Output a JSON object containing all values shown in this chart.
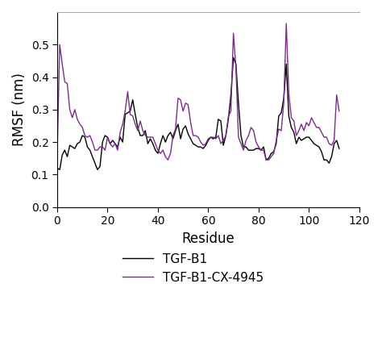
{
  "title": "",
  "xlabel": "Residue",
  "ylabel": "RMSF (nm)",
  "xlim": [
    0,
    120
  ],
  "ylim": [
    0,
    0.6
  ],
  "xticks": [
    0,
    20,
    40,
    60,
    80,
    100,
    120
  ],
  "yticks": [
    0,
    0.1,
    0.2,
    0.3,
    0.4,
    0.5
  ],
  "color_black": "#000000",
  "color_purple": "#7B2D8B",
  "legend_labels": [
    "TGF-B1",
    "TGF-B1-CX-4945"
  ],
  "tgfb1_y": [
    0.12,
    0.115,
    0.16,
    0.175,
    0.155,
    0.19,
    0.185,
    0.18,
    0.195,
    0.2,
    0.22,
    0.215,
    0.185,
    0.175,
    0.155,
    0.135,
    0.115,
    0.125,
    0.2,
    0.22,
    0.215,
    0.195,
    0.205,
    0.195,
    0.185,
    0.215,
    0.2,
    0.285,
    0.29,
    0.295,
    0.33,
    0.285,
    0.245,
    0.22,
    0.22,
    0.235,
    0.195,
    0.21,
    0.195,
    0.175,
    0.165,
    0.195,
    0.22,
    0.2,
    0.22,
    0.23,
    0.21,
    0.235,
    0.255,
    0.21,
    0.24,
    0.25,
    0.225,
    0.21,
    0.195,
    0.19,
    0.185,
    0.185,
    0.18,
    0.19,
    0.205,
    0.215,
    0.21,
    0.215,
    0.27,
    0.265,
    0.19,
    0.22,
    0.27,
    0.345,
    0.46,
    0.44,
    0.32,
    0.22,
    0.185,
    0.185,
    0.175,
    0.175,
    0.175,
    0.18,
    0.18,
    0.175,
    0.185,
    0.145,
    0.15,
    0.165,
    0.17,
    0.195,
    0.28,
    0.29,
    0.335,
    0.44,
    0.28,
    0.245,
    0.23,
    0.195,
    0.215,
    0.205,
    0.21,
    0.215,
    0.215,
    0.205,
    0.195,
    0.19,
    0.185,
    0.17,
    0.145,
    0.145,
    0.135,
    0.155,
    0.195,
    0.205,
    0.18
  ],
  "cx4945_y": [
    0.16,
    0.5,
    0.44,
    0.385,
    0.38,
    0.3,
    0.275,
    0.3,
    0.27,
    0.255,
    0.245,
    0.22,
    0.215,
    0.22,
    0.2,
    0.175,
    0.175,
    0.185,
    0.185,
    0.175,
    0.215,
    0.195,
    0.185,
    0.195,
    0.175,
    0.23,
    0.255,
    0.295,
    0.355,
    0.285,
    0.28,
    0.255,
    0.235,
    0.265,
    0.235,
    0.22,
    0.215,
    0.215,
    0.215,
    0.195,
    0.175,
    0.165,
    0.175,
    0.155,
    0.145,
    0.165,
    0.22,
    0.24,
    0.335,
    0.33,
    0.295,
    0.32,
    0.315,
    0.26,
    0.22,
    0.22,
    0.215,
    0.2,
    0.19,
    0.195,
    0.21,
    0.215,
    0.215,
    0.21,
    0.22,
    0.195,
    0.205,
    0.22,
    0.28,
    0.295,
    0.535,
    0.43,
    0.215,
    0.195,
    0.175,
    0.205,
    0.22,
    0.245,
    0.235,
    0.2,
    0.185,
    0.175,
    0.175,
    0.145,
    0.145,
    0.155,
    0.165,
    0.205,
    0.24,
    0.235,
    0.32,
    0.565,
    0.35,
    0.275,
    0.265,
    0.22,
    0.235,
    0.255,
    0.235,
    0.26,
    0.25,
    0.275,
    0.26,
    0.245,
    0.245,
    0.23,
    0.215,
    0.215,
    0.195,
    0.19,
    0.205,
    0.345,
    0.295
  ]
}
